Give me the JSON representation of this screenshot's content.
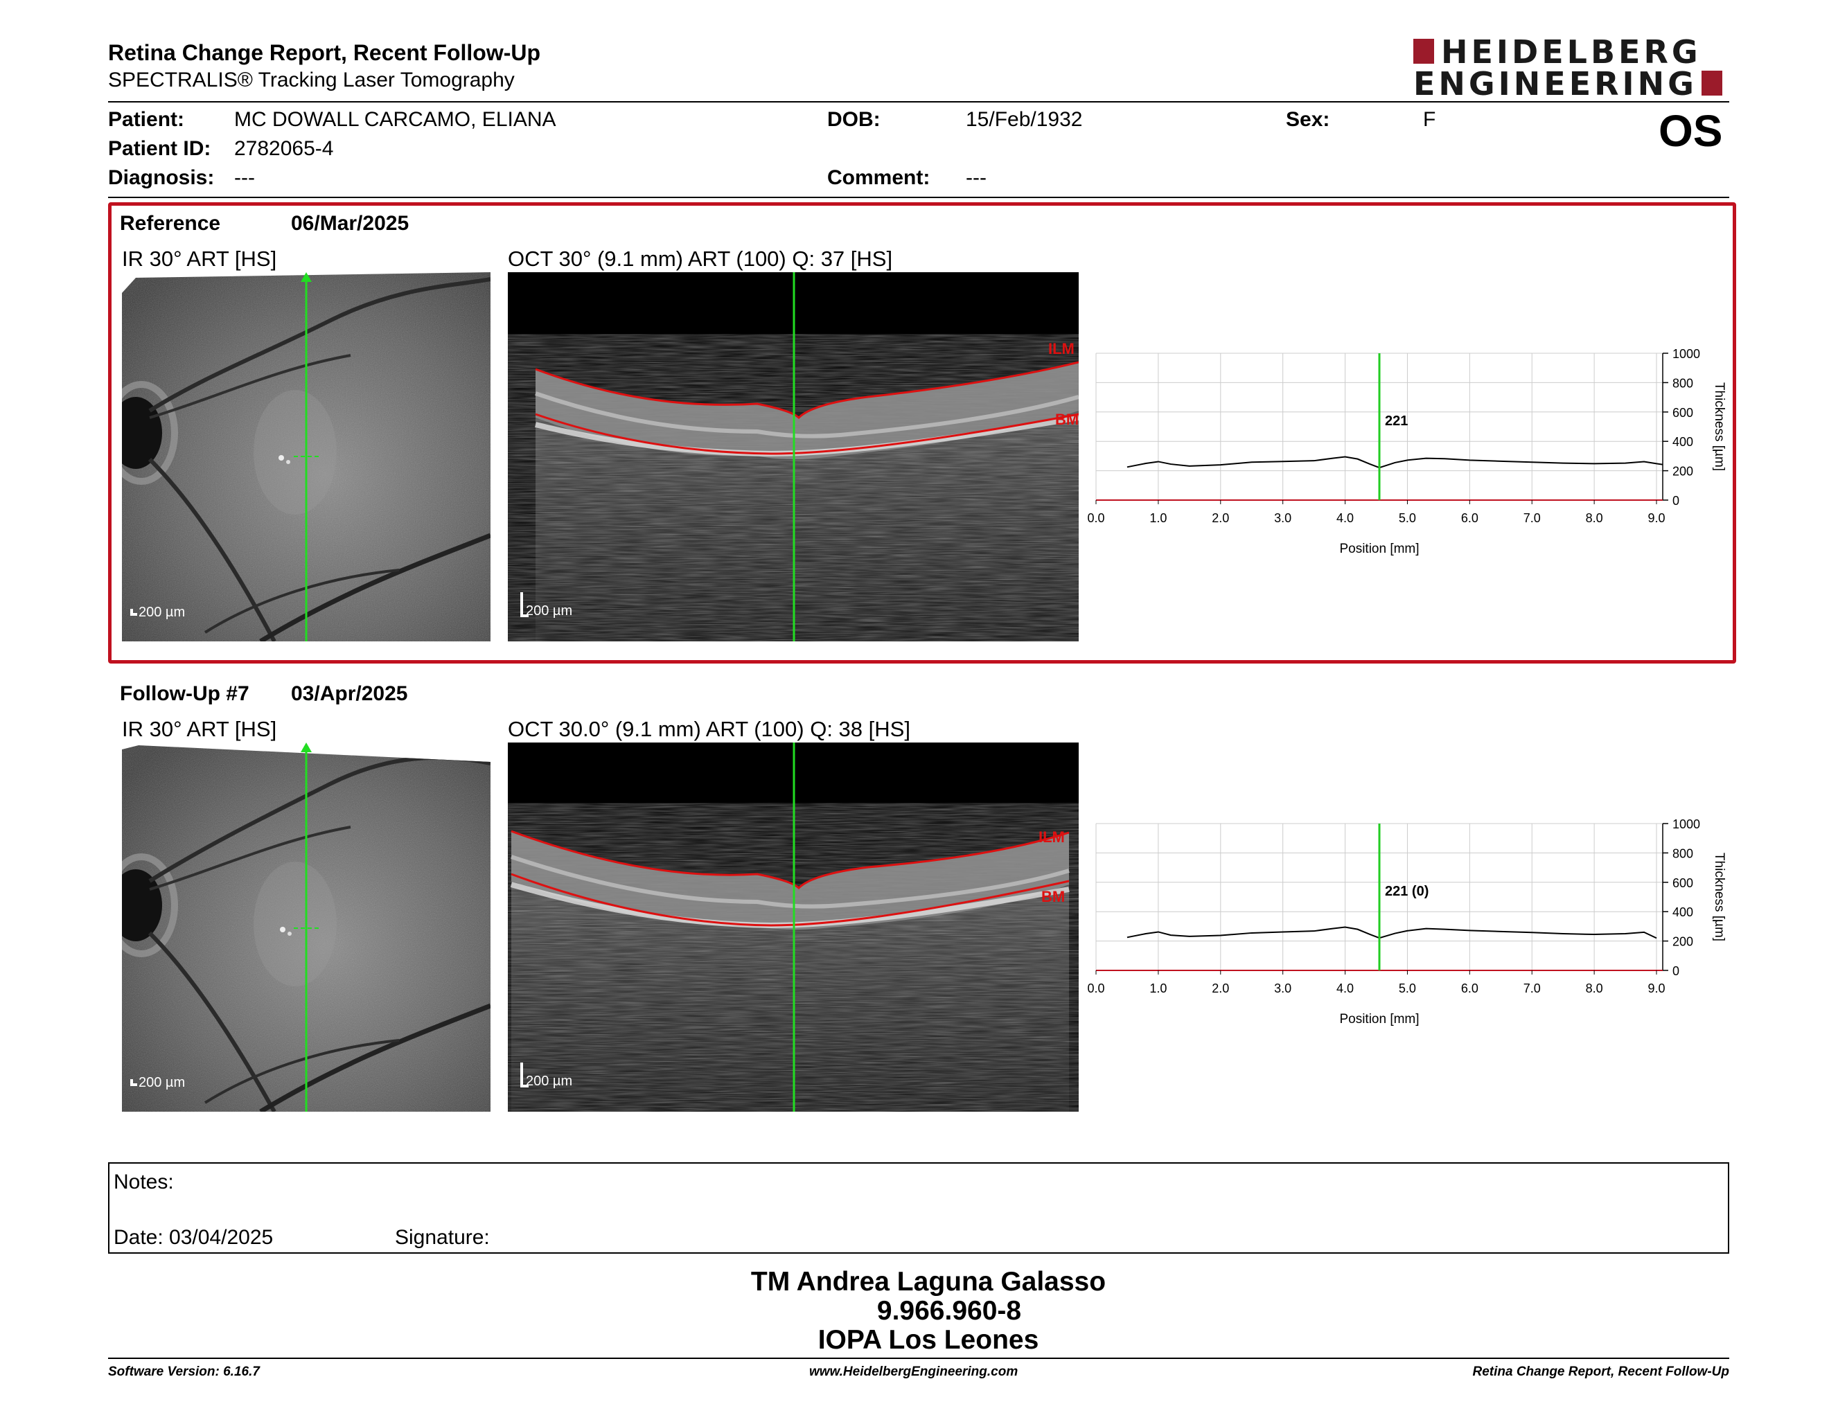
{
  "header": {
    "title": "Retina Change Report, Recent Follow-Up",
    "subtitle": "SPECTRALIS® Tracking Laser Tomography",
    "logo_line1": "HEIDELBERG",
    "logo_line2": "ENGINEERING",
    "eye": "OS"
  },
  "patient": {
    "name_label": "Patient:",
    "name": "MC DOWALL CARCAMO, ELIANA",
    "id_label": "Patient ID:",
    "id": "2782065-4",
    "diagnosis_label": "Diagnosis:",
    "diagnosis": "---",
    "dob_label": "DOB:",
    "dob": "15/Feb/1932",
    "comment_label": "Comment:",
    "comment": "---",
    "sex_label": "Sex:",
    "sex": "F"
  },
  "reference": {
    "label": "Reference",
    "date": "06/Mar/2025",
    "ir_label": "IR 30° ART [HS]",
    "oct_label": "OCT 30° (9.1 mm) ART (100) Q: 37 [HS]",
    "scale_ir": "200 µm",
    "scale_oct": "200 µm",
    "ilm": "ILM",
    "bm": "BM"
  },
  "followup": {
    "label": "Follow-Up #7",
    "date": "03/Apr/2025",
    "ir_label": "IR 30° ART [HS]",
    "oct_label": "OCT 30.0° (9.1 mm) ART (100) Q: 38 [HS]",
    "scale_ir": "200 µm",
    "scale_oct": "200 µm",
    "ilm": "ILM",
    "bm": "BM"
  },
  "chart_data": [
    {
      "type": "line",
      "xlabel": "Position [mm]",
      "ylabel": "Thickness [µm]",
      "xlim": [
        0,
        9.1
      ],
      "ylim": [
        0,
        1000
      ],
      "x_ticks": [
        "0.0",
        "1.0",
        "2.0",
        "3.0",
        "4.0",
        "5.0",
        "6.0",
        "7.0",
        "8.0",
        "9.0"
      ],
      "y_ticks": [
        "0",
        "200",
        "400",
        "600",
        "800",
        "1000"
      ],
      "marker_x": 4.55,
      "marker_label": "221",
      "line_color": "#22cc22",
      "x": [
        0.5,
        0.8,
        1.0,
        1.2,
        1.5,
        2.0,
        2.5,
        3.0,
        3.5,
        3.8,
        4.0,
        4.2,
        4.4,
        4.55,
        4.8,
        5.0,
        5.3,
        5.6,
        6.0,
        6.5,
        7.0,
        7.5,
        8.0,
        8.5,
        8.8,
        9.0,
        9.1
      ],
      "y": [
        225,
        250,
        262,
        245,
        232,
        240,
        258,
        263,
        268,
        285,
        295,
        280,
        245,
        221,
        255,
        272,
        285,
        282,
        272,
        265,
        258,
        252,
        248,
        252,
        262,
        248,
        242
      ]
    },
    {
      "type": "line",
      "xlabel": "Position [mm]",
      "ylabel": "Thickness [µm]",
      "xlim": [
        0,
        9.1
      ],
      "ylim": [
        0,
        1000
      ],
      "x_ticks": [
        "0.0",
        "1.0",
        "2.0",
        "3.0",
        "4.0",
        "5.0",
        "6.0",
        "7.0",
        "8.0",
        "9.0"
      ],
      "y_ticks": [
        "0",
        "200",
        "400",
        "600",
        "800",
        "1000"
      ],
      "marker_x": 4.55,
      "marker_label": "221 (0)",
      "line_color": "#22cc22",
      "x": [
        0.5,
        0.8,
        1.0,
        1.2,
        1.5,
        2.0,
        2.5,
        3.0,
        3.5,
        3.8,
        4.0,
        4.2,
        4.4,
        4.55,
        4.8,
        5.0,
        5.3,
        5.6,
        6.0,
        6.5,
        7.0,
        7.5,
        8.0,
        8.5,
        8.8,
        9.0
      ],
      "y": [
        225,
        250,
        262,
        240,
        232,
        238,
        255,
        262,
        268,
        285,
        295,
        280,
        245,
        221,
        252,
        270,
        285,
        280,
        272,
        265,
        258,
        250,
        245,
        250,
        260,
        220
      ]
    }
  ],
  "notes": {
    "notes_label": "Notes:",
    "date_label": "Date: 03/04/2025",
    "signature_label": "Signature:"
  },
  "signature": {
    "line1": "TM Andrea Laguna Galasso",
    "line2": "9.966.960-8",
    "line3": "IOPA Los Leones"
  },
  "footer": {
    "version": "Software Version: 6.16.7",
    "website": "www.HeidelbergEngineering.com",
    "report_name": "Retina Change Report, Recent Follow-Up"
  },
  "colors": {
    "accent_red": "#c0111f",
    "logo_red": "#9b1b2a",
    "scan_green": "#22dd22",
    "layer_red": "#dd1111"
  }
}
